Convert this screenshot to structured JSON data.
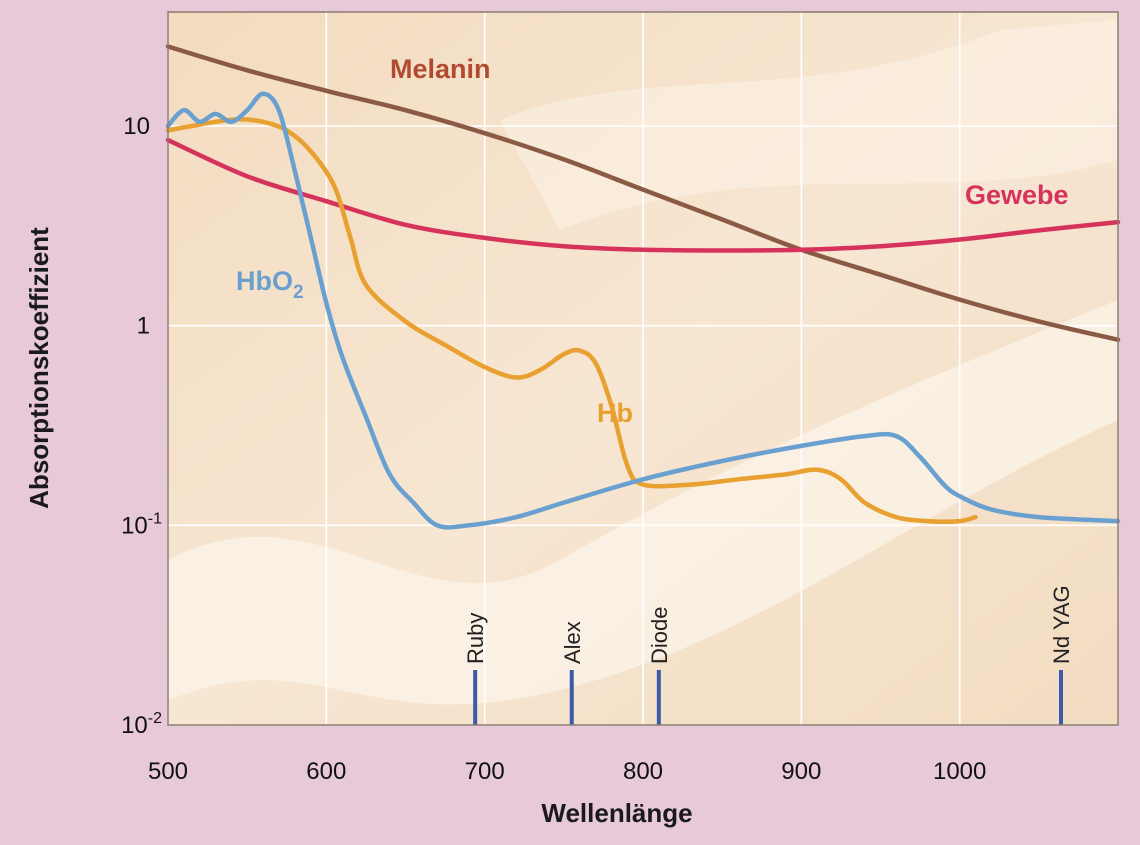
{
  "chart_data": {
    "type": "line",
    "xlabel": "Wellenlänge",
    "ylabel": "Absorptionskoeffizient",
    "xlim": [
      500,
      1100
    ],
    "ylim": [
      0.01,
      30
    ],
    "yscale": "log",
    "x_ticks": [
      500,
      600,
      700,
      800,
      900,
      1000
    ],
    "y_ticks": [
      {
        "value": 10,
        "label": "10"
      },
      {
        "value": 1,
        "label": "1"
      },
      {
        "value": 0.1,
        "label": "10",
        "sup": "-1"
      },
      {
        "value": 0.01,
        "label": "10",
        "sup": "-2"
      }
    ],
    "grid": true,
    "series": [
      {
        "name": "Melanin",
        "color": "#8a5a45",
        "x": [
          500,
          550,
          600,
          650,
          700,
          750,
          800,
          850,
          900,
          950,
          1000,
          1050,
          1100
        ],
        "y": [
          25,
          19,
          15,
          12,
          9.2,
          6.8,
          4.8,
          3.4,
          2.4,
          1.8,
          1.35,
          1.05,
          0.85
        ]
      },
      {
        "name": "Gewebe",
        "color": "#d6335c",
        "x": [
          500,
          550,
          600,
          650,
          700,
          750,
          800,
          850,
          900,
          950,
          1000,
          1050,
          1100
        ],
        "y": [
          8.5,
          5.6,
          4.2,
          3.2,
          2.75,
          2.5,
          2.4,
          2.38,
          2.4,
          2.5,
          2.7,
          3.0,
          3.3
        ]
      },
      {
        "name": "Hb",
        "color": "#e8a030",
        "x": [
          500,
          515,
          530,
          545,
          560,
          575,
          590,
          605,
          615,
          625,
          650,
          675,
          700,
          720,
          735,
          750,
          760,
          770,
          780,
          790,
          800,
          830,
          860,
          890,
          910,
          925,
          940,
          960,
          980,
          1000,
          1010
        ],
        "y": [
          9.5,
          10,
          10.5,
          10.8,
          10.5,
          9.5,
          7.5,
          5.0,
          2.8,
          1.6,
          1.05,
          0.8,
          0.62,
          0.55,
          0.6,
          0.72,
          0.75,
          0.65,
          0.4,
          0.2,
          0.16,
          0.16,
          0.17,
          0.18,
          0.19,
          0.17,
          0.13,
          0.11,
          0.105,
          0.105,
          0.11
        ]
      },
      {
        "name": "HbO",
        "color": "#6aa0d0",
        "x": [
          500,
          510,
          520,
          530,
          540,
          550,
          560,
          570,
          580,
          590,
          600,
          610,
          625,
          640,
          655,
          670,
          690,
          720,
          750,
          800,
          850,
          900,
          940,
          960,
          975,
          990,
          1000,
          1020,
          1050,
          1100
        ],
        "y": [
          10,
          12,
          10.5,
          11.5,
          10.5,
          12,
          14.5,
          12,
          6,
          2.8,
          1.3,
          0.7,
          0.35,
          0.18,
          0.13,
          0.1,
          0.1,
          0.11,
          0.13,
          0.17,
          0.21,
          0.25,
          0.28,
          0.28,
          0.22,
          0.16,
          0.14,
          0.12,
          0.11,
          0.105
        ]
      }
    ],
    "annotations": [
      {
        "text": "Melanin",
        "color": "#b04a30"
      },
      {
        "text": "Gewebe",
        "color": "#d6335c"
      },
      {
        "text": "Hb",
        "color": "#e8a030"
      },
      {
        "text": "HbO",
        "sub": "2",
        "color": "#6aa0d0"
      }
    ],
    "laser_lines": [
      {
        "label": "Ruby",
        "x": 694
      },
      {
        "label": "Alex",
        "x": 755
      },
      {
        "label": "Diode",
        "x": 810
      },
      {
        "label": "Nd YAG",
        "x": 1064
      }
    ]
  }
}
